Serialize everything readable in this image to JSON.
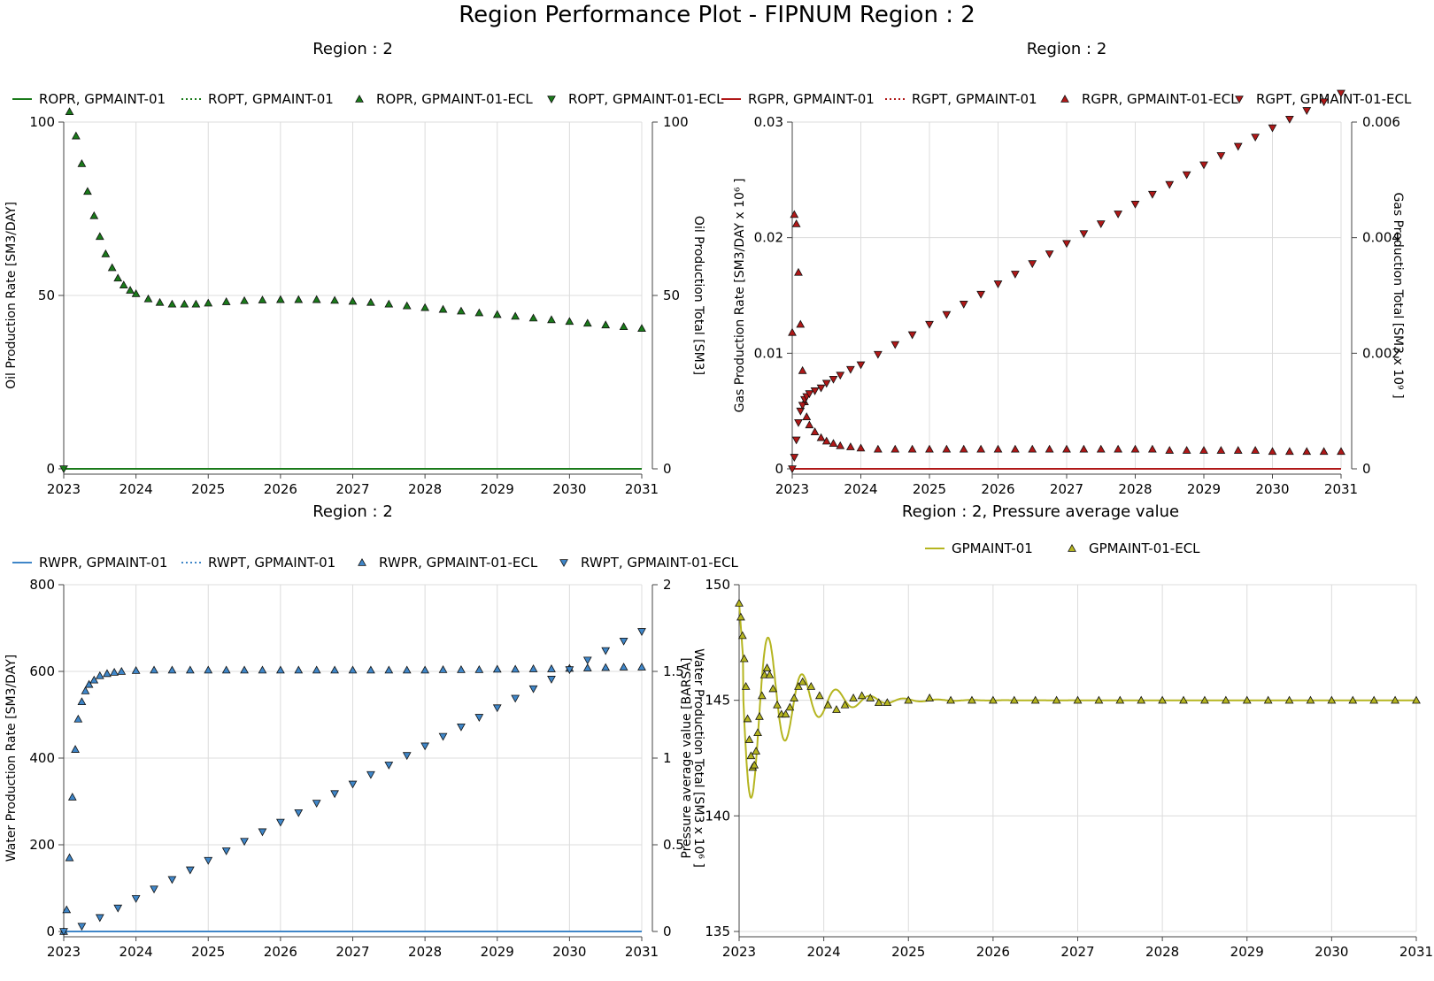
{
  "page_title": "Region Performance Plot - FIPNUM Region : 2",
  "chart_data": [
    {
      "id": "oil",
      "type": "line",
      "title": "Region : 2",
      "ylabel": "Oil Production Rate [SM3/DAY]",
      "y2label": "Oil Production Total [SM3]",
      "xlim": [
        2023,
        2031
      ],
      "x_ticks": [
        2023,
        2024,
        2025,
        2026,
        2027,
        2028,
        2029,
        2030,
        2031
      ],
      "ylim": [
        0,
        100
      ],
      "y_ticks": [
        0,
        50,
        100
      ],
      "y2lim": [
        0,
        100
      ],
      "y2_ticks": [
        0,
        50,
        100
      ],
      "color": "#1a7a1a",
      "legend": [
        {
          "label": "ROPR, GPMAINT-01",
          "kind": "solid"
        },
        {
          "label": "ROPT, GPMAINT-01",
          "kind": "dotted"
        },
        {
          "label": "ROPR, GPMAINT-01-ECL",
          "kind": "tri-up"
        },
        {
          "label": "ROPT, GPMAINT-01-ECL",
          "kind": "tri-down"
        }
      ],
      "series": [
        {
          "name": "ROPR, GPMAINT-01",
          "axis": "left",
          "style": "line",
          "x": [
            2023,
            2031
          ],
          "y": [
            0,
            0
          ]
        },
        {
          "name": "ROPR, GPMAINT-01-ECL",
          "axis": "left",
          "style": "tri-up",
          "x": [
            2023.08,
            2023.17,
            2023.25,
            2023.33,
            2023.42,
            2023.5,
            2023.58,
            2023.67,
            2023.75,
            2023.83,
            2023.92,
            2024.0,
            2024.17,
            2024.33,
            2024.5,
            2024.67,
            2024.83,
            2025.0,
            2025.25,
            2025.5,
            2025.75,
            2026.0,
            2026.25,
            2026.5,
            2026.75,
            2027.0,
            2027.25,
            2027.5,
            2027.75,
            2028.0,
            2028.25,
            2028.5,
            2028.75,
            2029.0,
            2029.25,
            2029.5,
            2029.75,
            2030.0,
            2030.25,
            2030.5,
            2030.75,
            2031.0
          ],
          "y": [
            103,
            96,
            88,
            80,
            73,
            67,
            62,
            58,
            55,
            53,
            51.5,
            50.5,
            49,
            48,
            47.5,
            47.5,
            47.5,
            47.8,
            48.2,
            48.5,
            48.7,
            48.8,
            48.8,
            48.8,
            48.6,
            48.3,
            48,
            47.5,
            47,
            46.5,
            46,
            45.5,
            45,
            44.5,
            44,
            43.5,
            43,
            42.5,
            42,
            41.5,
            41,
            40.5
          ]
        },
        {
          "name": "ROPT, GPMAINT-01-ECL",
          "axis": "right",
          "style": "tri-down",
          "x": [
            2023
          ],
          "y": [
            0
          ]
        }
      ]
    },
    {
      "id": "gas",
      "type": "line",
      "title": "Region : 2",
      "ylabel": "Gas Production Rate [SM3/DAY x 10⁶ ]",
      "y2label": "Gas Production Total [SM3 x 10⁹ ]",
      "xlim": [
        2023,
        2031
      ],
      "x_ticks": [
        2023,
        2024,
        2025,
        2026,
        2027,
        2028,
        2029,
        2030,
        2031
      ],
      "ylim": [
        0,
        0.03
      ],
      "y_ticks": [
        0,
        0.01,
        0.02,
        0.03
      ],
      "y_tick_labels": [
        "0",
        "0.01",
        "0.02",
        "0.03"
      ],
      "y2lim": [
        0,
        0.006
      ],
      "y2_ticks": [
        0,
        0.002,
        0.004,
        0.006
      ],
      "y2_tick_labels": [
        "0",
        "0.002",
        "0.004",
        "0.006"
      ],
      "color": "#b01818",
      "legend": [
        {
          "label": "RGPR, GPMAINT-01",
          "kind": "solid"
        },
        {
          "label": "RGPT, GPMAINT-01",
          "kind": "dotted"
        },
        {
          "label": "RGPR, GPMAINT-01-ECL",
          "kind": "tri-up"
        },
        {
          "label": "RGPT, GPMAINT-01-ECL",
          "kind": "tri-down"
        }
      ],
      "series": [
        {
          "name": "RGPR, GPMAINT-01",
          "axis": "left",
          "style": "line",
          "x": [
            2023,
            2031
          ],
          "y": [
            0,
            0
          ]
        },
        {
          "name": "RGPR, GPMAINT-01-ECL",
          "axis": "left",
          "style": "tri-up",
          "x": [
            2023.0,
            2023.03,
            2023.06,
            2023.09,
            2023.12,
            2023.15,
            2023.18,
            2023.21,
            2023.25,
            2023.33,
            2023.42,
            2023.5,
            2023.6,
            2023.7,
            2023.85,
            2024.0,
            2024.25,
            2024.5,
            2024.75,
            2025.0,
            2025.25,
            2025.5,
            2025.75,
            2026.0,
            2026.25,
            2026.5,
            2026.75,
            2027.0,
            2027.25,
            2027.5,
            2027.75,
            2028.0,
            2028.25,
            2028.5,
            2028.75,
            2029.0,
            2029.25,
            2029.5,
            2029.75,
            2030.0,
            2030.25,
            2030.5,
            2030.75,
            2031.0
          ],
          "y": [
            0.0118,
            0.022,
            0.0212,
            0.017,
            0.0125,
            0.0085,
            0.0058,
            0.0045,
            0.0038,
            0.0032,
            0.0027,
            0.0024,
            0.0022,
            0.002,
            0.0019,
            0.0018,
            0.0017,
            0.0017,
            0.0017,
            0.0017,
            0.0017,
            0.0017,
            0.0017,
            0.0017,
            0.0017,
            0.0017,
            0.0017,
            0.0017,
            0.0017,
            0.0017,
            0.0017,
            0.0017,
            0.0017,
            0.0016,
            0.0016,
            0.0016,
            0.0016,
            0.0016,
            0.0016,
            0.0015,
            0.0015,
            0.0015,
            0.0015,
            0.0015
          ]
        },
        {
          "name": "RGPT, GPMAINT-01-ECL",
          "axis": "right",
          "style": "tri-down",
          "x": [
            2023.0,
            2023.03,
            2023.06,
            2023.09,
            2023.12,
            2023.15,
            2023.18,
            2023.21,
            2023.25,
            2023.33,
            2023.42,
            2023.5,
            2023.6,
            2023.7,
            2023.85,
            2024.0,
            2024.25,
            2024.5,
            2024.75,
            2025.0,
            2025.25,
            2025.5,
            2025.75,
            2026.0,
            2026.25,
            2026.5,
            2026.75,
            2027.0,
            2027.25,
            2027.5,
            2027.75,
            2028.0,
            2028.25,
            2028.5,
            2028.75,
            2029.0,
            2029.25,
            2029.5,
            2029.75,
            2030.0,
            2030.25,
            2030.5,
            2030.75,
            2031.0
          ],
          "y": [
            0.0,
            0.0002,
            0.0005,
            0.0008,
            0.001,
            0.0011,
            0.0012,
            0.00125,
            0.0013,
            0.00135,
            0.0014,
            0.00148,
            0.00155,
            0.00162,
            0.00172,
            0.0018,
            0.00198,
            0.00215,
            0.00232,
            0.0025,
            0.00267,
            0.00285,
            0.00302,
            0.0032,
            0.00337,
            0.00355,
            0.00372,
            0.0039,
            0.00407,
            0.00424,
            0.00441,
            0.00458,
            0.00475,
            0.00492,
            0.00509,
            0.00526,
            0.00542,
            0.00558,
            0.00574,
            0.0059,
            0.00605,
            0.0062,
            0.00635,
            0.0065
          ]
        }
      ]
    },
    {
      "id": "water",
      "type": "line",
      "title": "Region : 2",
      "ylabel": "Water Production Rate [SM3/DAY]",
      "y2label": "Water Production Total [SM3 x 10⁶ ]",
      "xlim": [
        2023,
        2031
      ],
      "x_ticks": [
        2023,
        2024,
        2025,
        2026,
        2027,
        2028,
        2029,
        2030,
        2031
      ],
      "ylim": [
        0,
        800
      ],
      "y_ticks": [
        0,
        200,
        400,
        600,
        800
      ],
      "y2lim": [
        0,
        2
      ],
      "y2_ticks": [
        0,
        0.5,
        1,
        1.5,
        2
      ],
      "y2_tick_labels": [
        "0",
        "0.5",
        "1",
        "1.5",
        "2"
      ],
      "color": "#3f86c8",
      "legend": [
        {
          "label": "RWPR, GPMAINT-01",
          "kind": "solid"
        },
        {
          "label": "RWPT, GPMAINT-01",
          "kind": "dotted"
        },
        {
          "label": "RWPR, GPMAINT-01-ECL",
          "kind": "tri-up"
        },
        {
          "label": "RWPT, GPMAINT-01-ECL",
          "kind": "tri-down"
        }
      ],
      "series": [
        {
          "name": "RWPR, GPMAINT-01",
          "axis": "left",
          "style": "line",
          "x": [
            2023,
            2031
          ],
          "y": [
            0,
            0
          ]
        },
        {
          "name": "RWPR, GPMAINT-01-ECL",
          "axis": "left",
          "style": "tri-up",
          "x": [
            2023.0,
            2023.04,
            2023.08,
            2023.12,
            2023.16,
            2023.2,
            2023.25,
            2023.3,
            2023.35,
            2023.42,
            2023.5,
            2023.6,
            2023.7,
            2023.8,
            2024.0,
            2024.25,
            2024.5,
            2024.75,
            2025.0,
            2025.25,
            2025.5,
            2025.75,
            2026.0,
            2026.25,
            2026.5,
            2026.75,
            2027.0,
            2027.25,
            2027.5,
            2027.75,
            2028.0,
            2028.25,
            2028.5,
            2028.75,
            2029.0,
            2029.25,
            2029.5,
            2029.75,
            2030.0,
            2030.25,
            2030.5,
            2030.75,
            2031.0
          ],
          "y": [
            0,
            50,
            170,
            310,
            420,
            490,
            530,
            555,
            570,
            580,
            590,
            595,
            598,
            600,
            602,
            603,
            603,
            603,
            603,
            603,
            603,
            603,
            603,
            603,
            603,
            603,
            603,
            603,
            603,
            603,
            603,
            604,
            604,
            604,
            605,
            605,
            606,
            606,
            607,
            608,
            609,
            610,
            610
          ]
        },
        {
          "name": "RWPT, GPMAINT-01-ECL",
          "axis": "right",
          "style": "tri-down",
          "x": [
            2023.0,
            2023.25,
            2023.5,
            2023.75,
            2024.0,
            2024.25,
            2024.5,
            2024.75,
            2025.0,
            2025.25,
            2025.5,
            2025.75,
            2026.0,
            2026.25,
            2026.5,
            2026.75,
            2027.0,
            2027.25,
            2027.5,
            2027.75,
            2028.0,
            2028.25,
            2028.5,
            2028.75,
            2029.0,
            2029.25,
            2029.5,
            2029.75,
            2030.0,
            2030.25,
            2030.5,
            2030.75,
            2031.0
          ],
          "y": [
            0.0,
            0.03,
            0.08,
            0.135,
            0.19,
            0.245,
            0.3,
            0.355,
            0.41,
            0.465,
            0.52,
            0.575,
            0.63,
            0.685,
            0.74,
            0.795,
            0.85,
            0.905,
            0.96,
            1.015,
            1.07,
            1.125,
            1.18,
            1.235,
            1.29,
            1.345,
            1.4,
            1.455,
            1.51,
            1.565,
            1.62,
            1.675,
            1.73
          ]
        }
      ]
    },
    {
      "id": "pressure",
      "type": "line",
      "title": "Region : 2, Pressure average value",
      "ylabel": "Pressure average value [BARSA]",
      "xlim": [
        2023,
        2031
      ],
      "x_ticks": [
        2023,
        2024,
        2025,
        2026,
        2027,
        2028,
        2029,
        2030,
        2031
      ],
      "ylim": [
        135,
        150
      ],
      "y_ticks": [
        135,
        140,
        145,
        150
      ],
      "color": "#b5b520",
      "legend": [
        {
          "label": "GPMAINT-01",
          "kind": "solid"
        },
        {
          "label": "GPMAINT-01-ECL",
          "kind": "tri-up"
        }
      ],
      "line_series": {
        "name": "GPMAINT-01",
        "base": 145,
        "amplitude": 5.2,
        "decay_per_year": 2.2,
        "period_years": 0.4,
        "start": 2023.05
      },
      "series": [
        {
          "name": "GPMAINT-01-ECL",
          "axis": "left",
          "style": "tri-up",
          "x": [
            2023.0,
            2023.02,
            2023.04,
            2023.06,
            2023.08,
            2023.1,
            2023.12,
            2023.14,
            2023.16,
            2023.18,
            2023.2,
            2023.22,
            2023.24,
            2023.27,
            2023.3,
            2023.33,
            2023.36,
            2023.4,
            2023.45,
            2023.5,
            2023.55,
            2023.6,
            2023.65,
            2023.7,
            2023.75,
            2023.85,
            2023.95,
            2024.05,
            2024.15,
            2024.25,
            2024.35,
            2024.45,
            2024.55,
            2024.65,
            2024.75,
            2025.0,
            2025.25,
            2025.5,
            2025.75,
            2026.0,
            2026.25,
            2026.5,
            2026.75,
            2027.0,
            2027.25,
            2027.5,
            2027.75,
            2028.0,
            2028.25,
            2028.5,
            2028.75,
            2029.0,
            2029.25,
            2029.5,
            2029.75,
            2030.0,
            2030.25,
            2030.5,
            2030.75,
            2031.0
          ],
          "y": [
            149.2,
            148.6,
            147.8,
            146.8,
            145.6,
            144.2,
            143.3,
            142.6,
            142.1,
            142.2,
            142.8,
            143.6,
            144.3,
            145.2,
            146.1,
            146.4,
            146.1,
            145.5,
            144.8,
            144.4,
            144.4,
            144.7,
            145.1,
            145.6,
            145.8,
            145.6,
            145.2,
            144.8,
            144.6,
            144.8,
            145.1,
            145.2,
            145.1,
            144.9,
            144.9,
            145.0,
            145.1,
            145.0,
            145.0,
            145.0,
            145.0,
            145.0,
            145.0,
            145.0,
            145.0,
            145.0,
            145.0,
            145.0,
            145.0,
            145.0,
            145.0,
            145.0,
            145.0,
            145.0,
            145.0,
            145.0,
            145.0,
            145.0,
            145.0,
            145.0
          ]
        }
      ]
    }
  ]
}
